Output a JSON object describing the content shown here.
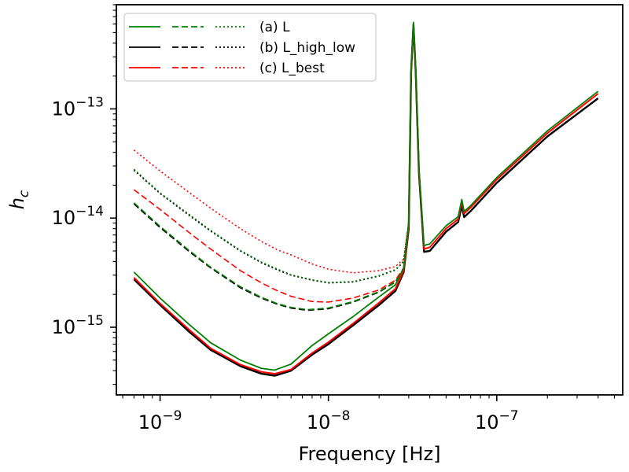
{
  "chart_data": {
    "type": "line",
    "xlabel": "Frequency [Hz]",
    "ylabel": "h",
    "ylabel_subscript": "c",
    "xscale": "log",
    "yscale": "log",
    "xlim": [
      5.5e-10,
      5.6e-07
    ],
    "ylim": [
      2.4e-16,
      9e-13
    ],
    "x_ticks": [
      {
        "value": 1e-09,
        "base": "10",
        "exp": "−9"
      },
      {
        "value": 1e-08,
        "base": "10",
        "exp": "−8"
      },
      {
        "value": 1e-07,
        "base": "10",
        "exp": "−7"
      }
    ],
    "y_ticks": [
      {
        "value": 1e-15,
        "base": "10",
        "exp": "−15"
      },
      {
        "value": 1e-14,
        "base": "10",
        "exp": "−14"
      },
      {
        "value": 1e-13,
        "base": "10",
        "exp": "−13"
      }
    ],
    "grid": false,
    "legend": {
      "placement": "top-left",
      "entries": [
        {
          "label": "(a) L",
          "color": "#008000"
        },
        {
          "label": "(b) L_high_low",
          "color": "#000000"
        },
        {
          "label": "(c) L_best",
          "color": "#ff0000"
        }
      ],
      "line_styles": [
        "solid",
        "dashed",
        "dotted"
      ]
    },
    "series": [
      {
        "color": "#000000",
        "style": "solid",
        "width": 2.4,
        "points": [
          [
            7e-10,
            2.75e-15
          ],
          [
            1e-09,
            1.6e-15
          ],
          [
            1.5e-09,
            9e-16
          ],
          [
            2e-09,
            6.2e-16
          ],
          [
            3e-09,
            4.4e-16
          ],
          [
            4e-09,
            3.75e-16
          ],
          [
            4.8e-09,
            3.6e-16
          ],
          [
            6e-09,
            4e-16
          ],
          [
            8e-09,
            5.6e-16
          ],
          [
            1e-08,
            7e-16
          ],
          [
            1.4e-08,
            1.04e-15
          ],
          [
            2e-08,
            1.6e-15
          ],
          [
            2.5e-08,
            2.15e-15
          ],
          [
            2.8e-08,
            3.2e-15
          ],
          [
            3e-08,
            8e-15
          ],
          [
            3.1e-08,
            2.2e-13
          ],
          [
            3.2e-08,
            5.9e-13
          ],
          [
            3.3e-08,
            2.2e-13
          ],
          [
            3.45e-08,
            2.6e-14
          ],
          [
            3.7e-08,
            4.9e-15
          ],
          [
            4e-08,
            5e-15
          ],
          [
            5e-08,
            7.5e-15
          ],
          [
            5.9e-08,
            9.2e-15
          ],
          [
            6.2e-08,
            1.3e-14
          ],
          [
            6.4e-08,
            1.02e-14
          ],
          [
            7e-08,
            1.16e-14
          ],
          [
            1e-07,
            2.1e-14
          ],
          [
            2e-07,
            5.6e-14
          ],
          [
            4e-07,
            1.25e-13
          ]
        ]
      },
      {
        "color": "#ff0000",
        "style": "solid",
        "width": 2.0,
        "points": [
          [
            7e-10,
            2.85e-15
          ],
          [
            1e-09,
            1.65e-15
          ],
          [
            1.5e-09,
            9.4e-16
          ],
          [
            2e-09,
            6.4e-16
          ],
          [
            3e-09,
            4.55e-16
          ],
          [
            4e-09,
            3.9e-16
          ],
          [
            4.8e-09,
            3.75e-16
          ],
          [
            6e-09,
            4.1e-16
          ],
          [
            8e-09,
            5.8e-16
          ],
          [
            1e-08,
            7.3e-16
          ],
          [
            1.4e-08,
            1.08e-15
          ],
          [
            2e-08,
            1.68e-15
          ],
          [
            2.5e-08,
            2.25e-15
          ],
          [
            2.8e-08,
            3.3e-15
          ],
          [
            3e-08,
            8.3e-15
          ],
          [
            3.1e-08,
            2.2e-13
          ],
          [
            3.2e-08,
            5.9e-13
          ],
          [
            3.3e-08,
            2.2e-13
          ],
          [
            3.45e-08,
            2.7e-14
          ],
          [
            3.7e-08,
            5.2e-15
          ],
          [
            4e-08,
            5.4e-15
          ],
          [
            5e-08,
            8e-15
          ],
          [
            5.9e-08,
            9.8e-15
          ],
          [
            6.2e-08,
            1.4e-14
          ],
          [
            6.4e-08,
            1.1e-14
          ],
          [
            7e-08,
            1.25e-14
          ],
          [
            1e-07,
            2.25e-14
          ],
          [
            2e-07,
            6e-14
          ],
          [
            4e-07,
            1.38e-13
          ]
        ]
      },
      {
        "color": "#008000",
        "style": "solid",
        "width": 1.8,
        "points": [
          [
            7e-10,
            3.2e-15
          ],
          [
            1e-09,
            1.85e-15
          ],
          [
            1.5e-09,
            1.05e-15
          ],
          [
            2e-09,
            7.2e-16
          ],
          [
            3e-09,
            5e-16
          ],
          [
            4e-09,
            4.2e-16
          ],
          [
            4.8e-09,
            4.05e-16
          ],
          [
            6e-09,
            4.6e-16
          ],
          [
            8e-09,
            6.8e-16
          ],
          [
            1e-08,
            8.7e-16
          ],
          [
            1.4e-08,
            1.25e-15
          ],
          [
            2e-08,
            1.9e-15
          ],
          [
            2.5e-08,
            2.45e-15
          ],
          [
            2.8e-08,
            3.5e-15
          ],
          [
            3e-08,
            8.8e-15
          ],
          [
            3.1e-08,
            2.3e-13
          ],
          [
            3.2e-08,
            6.2e-13
          ],
          [
            3.3e-08,
            2.3e-13
          ],
          [
            3.45e-08,
            2.9e-14
          ],
          [
            3.7e-08,
            5.6e-15
          ],
          [
            4e-08,
            5.8e-15
          ],
          [
            5e-08,
            8.5e-15
          ],
          [
            5.9e-08,
            1.03e-14
          ],
          [
            6.2e-08,
            1.48e-14
          ],
          [
            6.4e-08,
            1.15e-14
          ],
          [
            7e-08,
            1.3e-14
          ],
          [
            1e-07,
            2.35e-14
          ],
          [
            2e-07,
            6.3e-14
          ],
          [
            4e-07,
            1.45e-13
          ]
        ]
      },
      {
        "color": "#000000",
        "style": "dashed",
        "width": 1.8,
        "points": [
          [
            7e-10,
            1.35e-14
          ],
          [
            1e-09,
            8.2e-15
          ],
          [
            1.5e-09,
            4.9e-15
          ],
          [
            2e-09,
            3.5e-15
          ],
          [
            3e-09,
            2.3e-15
          ],
          [
            4e-09,
            1.85e-15
          ],
          [
            5e-09,
            1.62e-15
          ],
          [
            6e-09,
            1.5e-15
          ],
          [
            7.5e-09,
            1.43e-15
          ],
          [
            1e-08,
            1.48e-15
          ],
          [
            1.4e-08,
            1.7e-15
          ],
          [
            2e-08,
            2.1e-15
          ],
          [
            2.5e-08,
            2.6e-15
          ],
          [
            2.8e-08,
            3.4e-15
          ],
          [
            3e-08,
            8e-15
          ],
          [
            3.1e-08,
            2.2e-13
          ]
        ]
      },
      {
        "color": "#008000",
        "style": "dashed",
        "width": 1.6,
        "points": [
          [
            7e-10,
            1.38e-14
          ],
          [
            1e-09,
            8.4e-15
          ],
          [
            1.5e-09,
            5e-15
          ],
          [
            2e-09,
            3.55e-15
          ],
          [
            3e-09,
            2.35e-15
          ],
          [
            4e-09,
            1.88e-15
          ],
          [
            5e-09,
            1.64e-15
          ],
          [
            6e-09,
            1.52e-15
          ],
          [
            7.5e-09,
            1.45e-15
          ],
          [
            1e-08,
            1.5e-15
          ],
          [
            1.4e-08,
            1.72e-15
          ],
          [
            2e-08,
            2.12e-15
          ],
          [
            2.5e-08,
            2.62e-15
          ],
          [
            2.8e-08,
            3.45e-15
          ],
          [
            3e-08,
            8.2e-15
          ],
          [
            3.1e-08,
            2.25e-13
          ]
        ]
      },
      {
        "color": "#ff0000",
        "style": "dashed",
        "width": 1.6,
        "points": [
          [
            7e-10,
            1.82e-14
          ],
          [
            1e-09,
            1.2e-14
          ],
          [
            1.5e-09,
            7.3e-15
          ],
          [
            2e-09,
            5.2e-15
          ],
          [
            3e-09,
            3.3e-15
          ],
          [
            4e-09,
            2.55e-15
          ],
          [
            5e-09,
            2.15e-15
          ],
          [
            6e-09,
            1.92e-15
          ],
          [
            8e-09,
            1.72e-15
          ],
          [
            1e-08,
            1.7e-15
          ],
          [
            1.4e-08,
            1.85e-15
          ],
          [
            2e-08,
            2.2e-15
          ],
          [
            2.5e-08,
            2.7e-15
          ],
          [
            2.8e-08,
            3.5e-15
          ],
          [
            3e-08,
            8.4e-15
          ],
          [
            3.1e-08,
            2.25e-13
          ]
        ]
      },
      {
        "color": "#000000",
        "style": "dotted",
        "width": 1.8,
        "points": [
          [
            7e-10,
            2.75e-14
          ],
          [
            1e-09,
            1.68e-14
          ],
          [
            1.5e-09,
            1.05e-14
          ],
          [
            2e-09,
            7.6e-15
          ],
          [
            3e-09,
            5e-15
          ],
          [
            4e-09,
            3.9e-15
          ],
          [
            5e-09,
            3.35e-15
          ],
          [
            6e-09,
            3e-15
          ],
          [
            8e-09,
            2.7e-15
          ],
          [
            1e-08,
            2.55e-15
          ],
          [
            1.4e-08,
            2.6e-15
          ],
          [
            2e-08,
            2.95e-15
          ],
          [
            2.5e-08,
            3.35e-15
          ],
          [
            2.8e-08,
            4e-15
          ],
          [
            3e-08,
            9e-15
          ],
          [
            3.1e-08,
            2.3e-13
          ]
        ]
      },
      {
        "color": "#008000",
        "style": "dotted",
        "width": 1.6,
        "points": [
          [
            7e-10,
            2.8e-14
          ],
          [
            1e-09,
            1.7e-14
          ],
          [
            1.5e-09,
            1.07e-14
          ],
          [
            2e-09,
            7.7e-15
          ],
          [
            3e-09,
            5.05e-15
          ],
          [
            4e-09,
            3.95e-15
          ],
          [
            5e-09,
            3.4e-15
          ],
          [
            6e-09,
            3.02e-15
          ],
          [
            8e-09,
            2.72e-15
          ],
          [
            1e-08,
            2.57e-15
          ],
          [
            1.4e-08,
            2.62e-15
          ],
          [
            2e-08,
            2.97e-15
          ],
          [
            2.5e-08,
            3.38e-15
          ],
          [
            2.8e-08,
            4.05e-15
          ],
          [
            3e-08,
            9.1e-15
          ],
          [
            3.1e-08,
            2.3e-13
          ]
        ]
      },
      {
        "color": "#ff0000",
        "style": "dotted",
        "width": 1.6,
        "points": [
          [
            7e-10,
            4.2e-14
          ],
          [
            1e-09,
            2.7e-14
          ],
          [
            1.5e-09,
            1.7e-14
          ],
          [
            2e-09,
            1.23e-14
          ],
          [
            3e-09,
            8e-15
          ],
          [
            4e-09,
            6.1e-15
          ],
          [
            5e-09,
            5.1e-15
          ],
          [
            6e-09,
            4.6e-15
          ],
          [
            8e-09,
            3.8e-15
          ],
          [
            1e-08,
            3.4e-15
          ],
          [
            1.4e-08,
            3.15e-15
          ],
          [
            2e-08,
            3.3e-15
          ],
          [
            2.5e-08,
            3.6e-15
          ],
          [
            2.8e-08,
            4.2e-15
          ],
          [
            3e-08,
            9.3e-15
          ],
          [
            3.1e-08,
            2.35e-13
          ]
        ]
      }
    ]
  }
}
